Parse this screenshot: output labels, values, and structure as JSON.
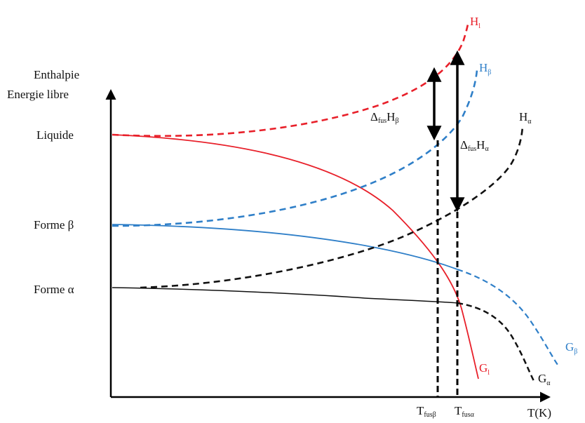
{
  "y_axis": {
    "label_line1": "Enthalpie",
    "label_line2": "Energie libre"
  },
  "x_axis": {
    "label": "T(K)"
  },
  "levels": {
    "liquide": "Liquide",
    "forme_beta_word": "Forme",
    "beta_symbol": "β",
    "forme_alpha_word": "Forme",
    "alpha_symbol": "α"
  },
  "curve_labels": {
    "H_l": {
      "main": "H",
      "sub": "l"
    },
    "H_beta": {
      "main": "H",
      "sub": "β"
    },
    "H_alpha": {
      "main": "H",
      "sub": "α"
    },
    "G_l": {
      "main": "G",
      "sub": "l"
    },
    "G_beta": {
      "main": "G",
      "sub": "β"
    },
    "G_alpha": {
      "main": "G",
      "sub": "α"
    }
  },
  "arrows": {
    "delta_beta": {
      "delta": "Δ",
      "sub": "fus",
      "main": "H",
      "sub2": "β"
    },
    "delta_alpha": {
      "delta": "Δ",
      "sub": "fus",
      "main": "H",
      "sub2": "α"
    }
  },
  "temperatures": {
    "T_fus_beta": {
      "main": "T",
      "sub": "fusβ"
    },
    "T_fus_alpha": {
      "main": "T",
      "sub": "fusα"
    }
  },
  "colors": {
    "liquid": "#e8202a",
    "beta": "#2f7fc8",
    "alpha": "#111111",
    "axis": "#000000"
  }
}
